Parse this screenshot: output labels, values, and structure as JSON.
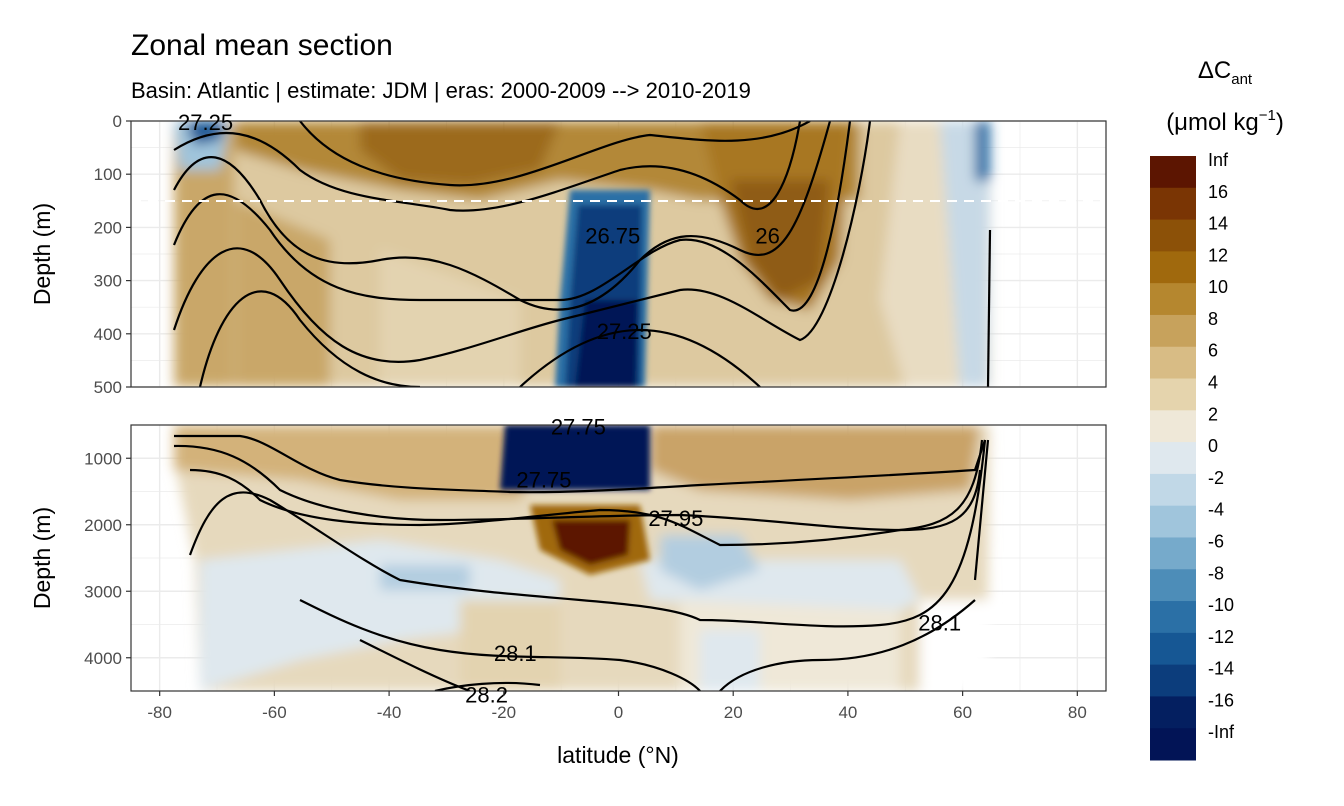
{
  "chart_data": {
    "type": "heatmap",
    "title": "Zonal mean section",
    "subtitle": "Basin: Atlantic | estimate: JDM  | eras: 2000-2009 --> 2010-2019",
    "xlabel": "latitude (°N)",
    "ylabel": "Depth (m)",
    "x_ticks": [
      "-80",
      "-60",
      "-40",
      "-20",
      "0",
      "20",
      "40",
      "60",
      "80"
    ],
    "xlim": [
      -85,
      85
    ],
    "panels": [
      {
        "name": "upper",
        "ylim": [
          0,
          500
        ],
        "y_ticks": [
          "0",
          "100",
          "200",
          "300",
          "400",
          "500"
        ],
        "reference_line_depth": 150
      },
      {
        "name": "lower",
        "ylim": [
          500,
          4500
        ],
        "y_ticks": [
          "1000",
          "2000",
          "3000",
          "4000"
        ]
      }
    ],
    "legend": {
      "title_main": "ΔC",
      "title_sub": "ant",
      "unit_main": "(μmol kg",
      "unit_sup": "−1",
      "unit_close": ")",
      "placement": "right",
      "labels": [
        "Inf",
        "16",
        "14",
        "12",
        "10",
        "8",
        "6",
        "4",
        "2",
        "0",
        "-2",
        "-4",
        "-6",
        "-8",
        "-10",
        "-12",
        "-14",
        "-16",
        "-Inf"
      ],
      "colors": [
        "#5c1501",
        "#7a3504",
        "#8c5108",
        "#a0690d",
        "#b5872f",
        "#c7a25c",
        "#d8bc85",
        "#e5d4ad",
        "#efe8d8",
        "#dfe8ee",
        "#c1d8e7",
        "#a0c5dc",
        "#76aacb",
        "#4d8db8",
        "#2b70a6",
        "#165794",
        "#0c3d7c",
        "#041f60",
        "#021456"
      ]
    },
    "isopycnal_labels": [
      {
        "text": "26.75",
        "lat": -1,
        "depth": 215
      },
      {
        "text": "26",
        "lat": 26,
        "depth": 215
      },
      {
        "text": "27.25",
        "lat": 1,
        "depth": 395
      },
      {
        "text": "27.75",
        "lat": -13,
        "depth": 1320
      },
      {
        "text": "27.95",
        "lat": 10,
        "depth": 1900
      },
      {
        "text": "28.1",
        "lat": -18,
        "depth": 3930
      },
      {
        "text": "28.1",
        "lat": 56,
        "depth": 3470
      },
      {
        "text": "27.75",
        "lat": -7,
        "depth": 520
      },
      {
        "text": "28.2",
        "lat": -23,
        "depth": 4550
      },
      {
        "text": "27.25",
        "lat": -72,
        "depth": 2
      }
    ],
    "features": [
      {
        "description": "negative anomaly core (blue) near equator in upper panel",
        "lat_range": [
          -11,
          5
        ],
        "depth_range": [
          150,
          500
        ],
        "value": "-Inf"
      },
      {
        "description": "strong positive anomaly (dark brown) near equator",
        "lat_range": [
          -11,
          5
        ],
        "depth_range": [
          1700,
          2700
        ],
        "value": "Inf"
      },
      {
        "description": "positive anomaly subtropical north",
        "lat_range": [
          18,
          40
        ],
        "depth_range": [
          120,
          330
        ],
        "value": "12"
      }
    ]
  }
}
